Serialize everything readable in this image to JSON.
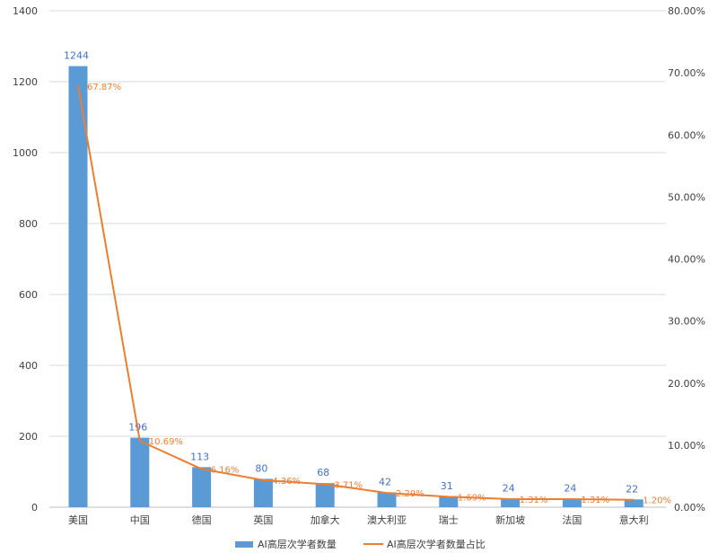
{
  "chart_data": {
    "type": "bar",
    "categories": [
      "美国",
      "中国",
      "德国",
      "英国",
      "加拿大",
      "澳大利亚",
      "瑞士",
      "新加坡",
      "法国",
      "意大利"
    ],
    "series": [
      {
        "name": "AI高层次学者数量",
        "type": "bar",
        "axis": "left",
        "values": [
          1244,
          196,
          113,
          80,
          68,
          42,
          31,
          24,
          24,
          22
        ],
        "labels": [
          "1244",
          "196",
          "113",
          "80",
          "68",
          "42",
          "31",
          "24",
          "24",
          "22"
        ]
      },
      {
        "name": "AI高层次学者数量占比",
        "type": "line",
        "axis": "right",
        "values": [
          67.87,
          10.69,
          6.16,
          4.36,
          3.71,
          2.29,
          1.69,
          1.31,
          1.31,
          1.2
        ],
        "labels": [
          "67.87%",
          "10.69%",
          "6.16%",
          "4.36%",
          "3.71%",
          "2.29%",
          "1.69%",
          "1.31%",
          "1.31%",
          "1.20%"
        ]
      }
    ],
    "y_left": {
      "min": 0,
      "max": 1400,
      "ticks": [
        "0",
        "200",
        "400",
        "600",
        "800",
        "1000",
        "1200",
        "1400"
      ]
    },
    "y_right": {
      "min": 0,
      "max": 80,
      "ticks": [
        "0.00%",
        "10.00%",
        "20.00%",
        "30.00%",
        "40.00%",
        "50.00%",
        "60.00%",
        "70.00%",
        "80.00%"
      ]
    },
    "grid": true,
    "legend_position": "bottom",
    "colors": {
      "bar": "#5b9bd5",
      "line": "#ed7d31",
      "bar_label": "#4472c4",
      "grid": "#d9d9d9"
    }
  }
}
